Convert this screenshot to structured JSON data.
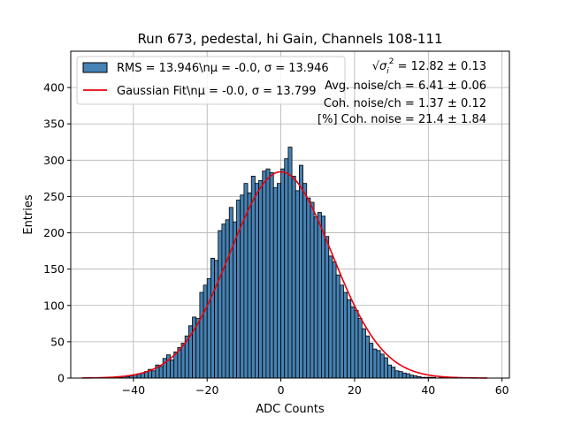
{
  "chart_data": {
    "type": "bar",
    "title": "Run 673, pedestal, hi Gain, Channels 108-111",
    "xlabel": "ADC Counts",
    "ylabel": "Entries",
    "xlim": [
      -57,
      62
    ],
    "ylim": [
      0,
      450
    ],
    "xticks": [
      -40,
      -20,
      0,
      20,
      40,
      60
    ],
    "yticks": [
      0,
      50,
      100,
      150,
      200,
      250,
      300,
      350,
      400
    ],
    "grid": true,
    "legend_position": "top-left",
    "bin_width": 1,
    "bin_start": -45,
    "histogram": {
      "name": "RMS = 13.946\\nμ = -0.0, σ = 13.946",
      "color": "#4682b4",
      "counts": [
        2,
        1,
        2,
        2,
        3,
        5,
        6,
        7,
        9,
        12,
        10,
        18,
        16,
        27,
        32,
        25,
        36,
        42,
        48,
        58,
        72,
        84,
        82,
        118,
        128,
        137,
        165,
        162,
        203,
        212,
        218,
        235,
        215,
        245,
        252,
        268,
        255,
        278,
        268,
        272,
        285,
        288,
        283,
        262,
        268,
        288,
        302,
        318,
        278,
        258,
        293,
        268,
        248,
        242,
        222,
        228,
        223,
        195,
        168,
        160,
        142,
        128,
        118,
        108,
        98,
        93,
        82,
        68,
        58,
        48,
        40,
        38,
        33,
        28,
        18,
        15,
        10,
        9,
        7,
        6,
        4,
        3,
        2,
        1,
        1,
        1,
        1,
        0,
        1,
        0,
        1,
        0,
        1
      ]
    },
    "fit": {
      "name": "Gaussian Fit\\nμ = -0.0, σ = 13.799",
      "color": "#e8000b",
      "type": "gaussian",
      "mu": 0.0,
      "sigma": 13.799,
      "amplitude": 284,
      "x_range": [
        -54,
        56
      ]
    },
    "annotations": [
      {
        "prefix": "√",
        "sym": "σ",
        "sub": "i",
        "sup": "2",
        "text": " = 12.82 ± 0.13"
      },
      {
        "text": "Avg. noise/ch = 6.41 ± 0.06"
      },
      {
        "text": "Coh. noise/ch = 1.37 ± 0.12"
      },
      {
        "text": "[%] Coh. noise = 21.4 ± 1.84"
      }
    ]
  }
}
